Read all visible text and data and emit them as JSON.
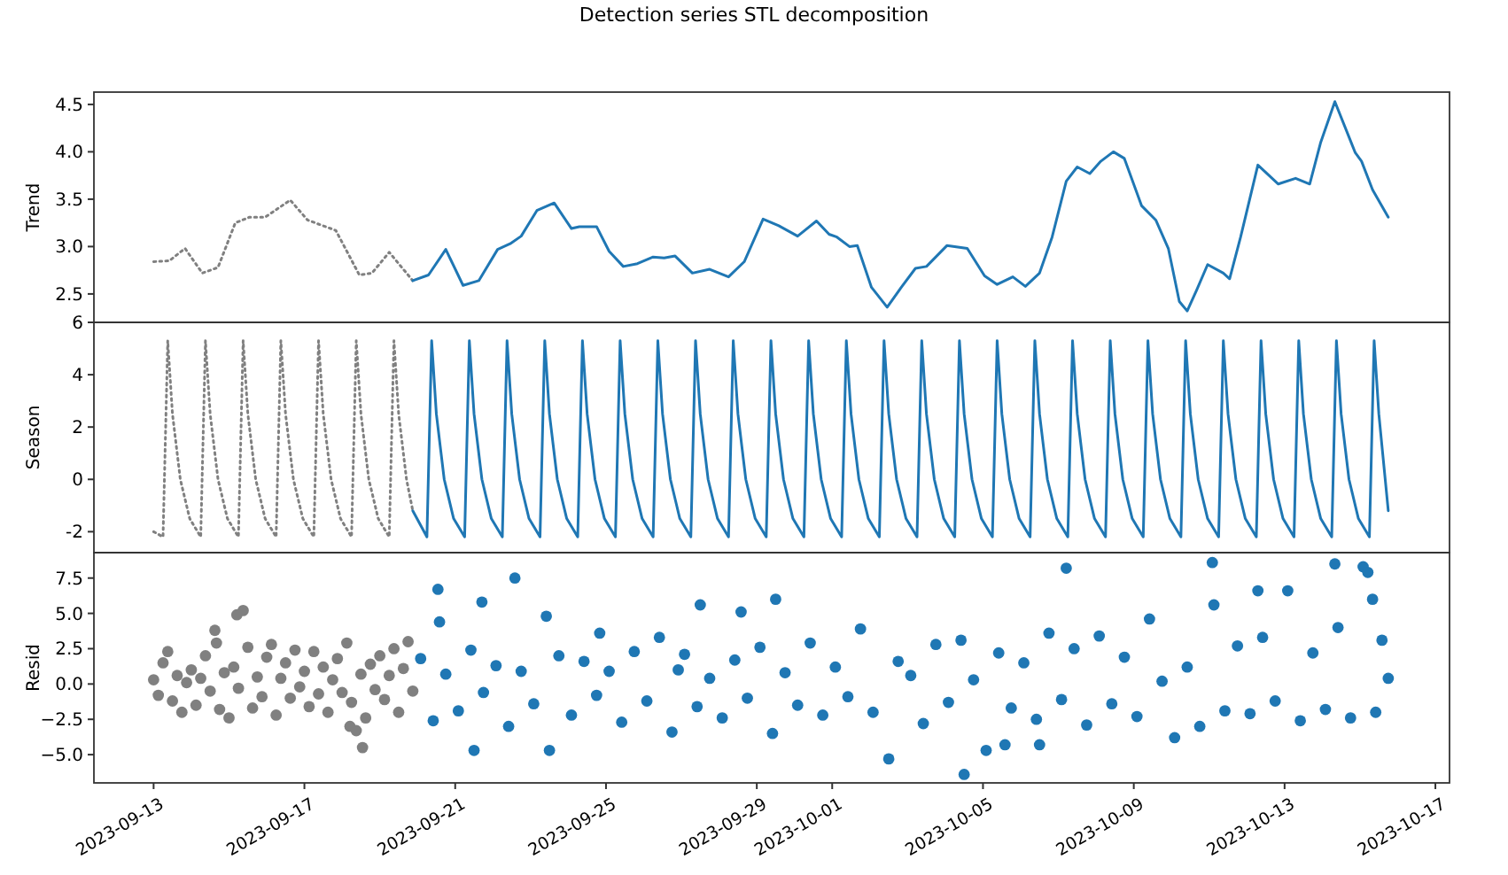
{
  "chart_data": [
    {
      "type": "line",
      "title": "Detection series STL decomposition",
      "ylabel": "Trend",
      "xlim": [
        "2023-09-11T10:00",
        "2023-10-17T09:00"
      ],
      "ylim": [
        2.2,
        4.63
      ],
      "yticks": [
        2.5,
        {
          "value": 3,
          "label": "3.0"
        },
        3.5,
        {
          "value": 4,
          "label": "4.0"
        },
        4.5
      ],
      "tick_labels": "y",
      "series": [
        {
          "color": "#808080",
          "line_style": "dotted",
          "x": [
            "2023-09-13T00:00",
            "2023-09-13T10:00",
            "2023-09-13T20:00",
            "2023-09-14T07:00",
            "2023-09-14T17:00",
            "2023-09-15T04:00",
            "2023-09-15T13:00",
            "2023-09-15T23:00",
            "2023-09-16T15:00",
            "2023-09-17T02:00",
            "2023-09-17T20:00",
            "2023-09-18T11:00",
            "2023-09-18T19:00",
            "2023-09-19T06:00",
            "2023-09-19T21:00"
          ],
          "values": [
            2.84,
            2.85,
            2.98,
            2.72,
            2.78,
            3.25,
            3.31,
            3.31,
            3.49,
            3.28,
            3.17,
            2.7,
            2.72,
            2.94,
            2.64
          ]
        },
        {
          "color": "#1f77b4",
          "line_style": "solid",
          "x": [
            "2023-09-19T21:00",
            "2023-09-20T07:00",
            "2023-09-20T18:00",
            "2023-09-21T05:00",
            "2023-09-21T15:00",
            "2023-09-22T03:00",
            "2023-09-22T11:00",
            "2023-09-22T18:00",
            "2023-09-23T04:00",
            "2023-09-23T15:00",
            "2023-09-24T02:00",
            "2023-09-24T07:00",
            "2023-09-24T18:00",
            "2023-09-25T02:00",
            "2023-09-25T11:00",
            "2023-09-25T20:00",
            "2023-09-26T06:00",
            "2023-09-26T13:00",
            "2023-09-26T20:00",
            "2023-09-27T07:00",
            "2023-09-27T18:00",
            "2023-09-28T06:00",
            "2023-09-28T16:00",
            "2023-09-29T04:00",
            "2023-09-29T14:00",
            "2023-09-30T02:00",
            "2023-09-30T14:00",
            "2023-09-30T22:00",
            "2023-10-01T03:00",
            "2023-10-01T11:00",
            "2023-10-01T16:00",
            "2023-10-02T01:00",
            "2023-10-02T11:00",
            "2023-10-02T20:00",
            "2023-10-03T05:00",
            "2023-10-03T12:00",
            "2023-10-04T01:00",
            "2023-10-04T14:00",
            "2023-10-05T01:00",
            "2023-10-05T09:00",
            "2023-10-05T19:00",
            "2023-10-06T03:00",
            "2023-10-06T12:00",
            "2023-10-06T20:00",
            "2023-10-07T05:00",
            "2023-10-07T12:00",
            "2023-10-07T20:00",
            "2023-10-08T03:00",
            "2023-10-08T11:00",
            "2023-10-08T18:00",
            "2023-10-09T05:00",
            "2023-10-09T14:00",
            "2023-10-09T22:00",
            "2023-10-10T05:00",
            "2023-10-10T10:00",
            "2023-10-10T16:00",
            "2023-10-10T23:00",
            "2023-10-11T09:00",
            "2023-10-11T13:00",
            "2023-10-11T20:00",
            "2023-10-12T07:00",
            "2023-10-12T20:00",
            "2023-10-13T07:00",
            "2023-10-13T16:00",
            "2023-10-13T23:00",
            "2023-10-14T08:00",
            "2023-10-14T21:00",
            "2023-10-15T01:00",
            "2023-10-15T08:00",
            "2023-10-15T18:00"
          ],
          "values": [
            2.64,
            2.7,
            2.97,
            2.59,
            2.64,
            2.97,
            3.03,
            3.11,
            3.38,
            3.46,
            3.19,
            3.21,
            3.21,
            2.95,
            2.79,
            2.82,
            2.89,
            2.88,
            2.9,
            2.72,
            2.76,
            2.68,
            2.84,
            3.29,
            3.22,
            3.11,
            3.27,
            3.13,
            3.1,
            3.0,
            3.01,
            2.57,
            2.36,
            2.57,
            2.77,
            2.79,
            3.01,
            2.98,
            2.69,
            2.6,
            2.68,
            2.58,
            2.72,
            3.1,
            3.69,
            3.84,
            3.77,
            3.9,
            4.0,
            3.93,
            3.43,
            3.28,
            2.98,
            2.42,
            2.32,
            2.54,
            2.81,
            2.72,
            2.66,
            3.1,
            3.86,
            3.66,
            3.72,
            3.66,
            4.1,
            4.53,
            3.99,
            3.9,
            3.6,
            3.31
          ]
        }
      ]
    },
    {
      "type": "line",
      "ylabel": "Season",
      "xlim": [
        "2023-09-11T10:00",
        "2023-10-17T09:00"
      ],
      "ylim": [
        -2.8,
        6
      ],
      "yticks": [
        -2,
        0,
        2,
        4,
        6
      ],
      "tick_labels": "y",
      "series": [
        {
          "color": "#808080",
          "line_style": "dotted",
          "x": [
            "2023-09-13T00:00",
            "2023-09-13T06:00",
            "2023-09-13T09:00",
            "2023-09-13T12:00",
            "2023-09-13T17:00",
            "2023-09-13T23:00",
            "2023-09-14T06:00",
            "2023-09-14T09:00",
            "2023-09-14T12:00",
            "2023-09-14T17:00",
            "2023-09-14T23:00",
            "2023-09-15T06:00",
            "2023-09-15T09:00",
            "2023-09-15T12:00",
            "2023-09-15T17:00",
            "2023-09-15T23:00",
            "2023-09-16T06:00",
            "2023-09-16T09:00",
            "2023-09-16T12:00",
            "2023-09-16T17:00",
            "2023-09-16T23:00",
            "2023-09-17T06:00",
            "2023-09-17T09:00",
            "2023-09-17T12:00",
            "2023-09-17T17:00",
            "2023-09-17T23:00",
            "2023-09-18T06:00",
            "2023-09-18T09:00",
            "2023-09-18T12:00",
            "2023-09-18T17:00",
            "2023-09-18T23:00",
            "2023-09-19T06:00",
            "2023-09-19T09:00",
            "2023-09-19T12:00",
            "2023-09-19T17:00",
            "2023-09-19T21:00"
          ],
          "values": [
            -2.0,
            -2.2,
            5.3,
            2.5,
            0.0,
            -1.5,
            -2.2,
            5.3,
            2.5,
            0.0,
            -1.5,
            -2.2,
            5.3,
            2.5,
            0.0,
            -1.5,
            -2.2,
            5.3,
            2.5,
            0.0,
            -1.5,
            -2.2,
            5.3,
            2.5,
            0.0,
            -1.5,
            -2.2,
            5.3,
            2.5,
            0.0,
            -1.5,
            -2.2,
            5.3,
            2.5,
            0.0,
            -1.2
          ]
        },
        {
          "color": "#1f77b4",
          "line_style": "solid",
          "x": [
            "2023-09-19T21:00",
            "2023-09-20T06:00",
            "2023-09-20T09:00",
            "2023-09-20T12:00",
            "2023-09-20T17:00",
            "2023-09-20T23:00",
            "2023-09-21T06:00",
            "2023-09-21T09:00",
            "2023-09-21T12:00",
            "2023-09-21T17:00",
            "2023-09-21T23:00",
            "2023-09-22T06:00",
            "2023-09-22T09:00",
            "2023-09-22T12:00",
            "2023-09-22T17:00",
            "2023-09-22T23:00",
            "2023-09-23T06:00",
            "2023-09-23T09:00",
            "2023-09-23T12:00",
            "2023-09-23T17:00",
            "2023-09-23T23:00",
            "2023-09-24T06:00",
            "2023-09-24T09:00",
            "2023-09-24T12:00",
            "2023-09-24T17:00",
            "2023-09-24T23:00",
            "2023-09-25T06:00",
            "2023-09-25T09:00",
            "2023-09-25T12:00",
            "2023-09-25T17:00",
            "2023-09-25T23:00",
            "2023-09-26T06:00",
            "2023-09-26T09:00",
            "2023-09-26T12:00",
            "2023-09-26T17:00",
            "2023-09-26T23:00",
            "2023-09-27T06:00",
            "2023-09-27T09:00",
            "2023-09-27T12:00",
            "2023-09-27T17:00",
            "2023-09-27T23:00",
            "2023-09-28T06:00",
            "2023-09-28T09:00",
            "2023-09-28T12:00",
            "2023-09-28T17:00",
            "2023-09-28T23:00",
            "2023-09-29T06:00",
            "2023-09-29T09:00",
            "2023-09-29T12:00",
            "2023-09-29T17:00",
            "2023-09-29T23:00",
            "2023-09-30T06:00",
            "2023-09-30T09:00",
            "2023-09-30T12:00",
            "2023-09-30T17:00",
            "2023-09-30T23:00",
            "2023-10-01T06:00",
            "2023-10-01T09:00",
            "2023-10-01T12:00",
            "2023-10-01T17:00",
            "2023-10-01T23:00",
            "2023-10-02T06:00",
            "2023-10-02T09:00",
            "2023-10-02T12:00",
            "2023-10-02T17:00",
            "2023-10-02T23:00",
            "2023-10-03T06:00",
            "2023-10-03T09:00",
            "2023-10-03T12:00",
            "2023-10-03T17:00",
            "2023-10-03T23:00",
            "2023-10-04T06:00",
            "2023-10-04T09:00",
            "2023-10-04T12:00",
            "2023-10-04T17:00",
            "2023-10-04T23:00",
            "2023-10-05T06:00",
            "2023-10-05T09:00",
            "2023-10-05T12:00",
            "2023-10-05T17:00",
            "2023-10-05T23:00",
            "2023-10-06T06:00",
            "2023-10-06T09:00",
            "2023-10-06T12:00",
            "2023-10-06T17:00",
            "2023-10-06T23:00",
            "2023-10-07T06:00",
            "2023-10-07T09:00",
            "2023-10-07T12:00",
            "2023-10-07T17:00",
            "2023-10-07T23:00",
            "2023-10-08T06:00",
            "2023-10-08T09:00",
            "2023-10-08T12:00",
            "2023-10-08T17:00",
            "2023-10-08T23:00",
            "2023-10-09T06:00",
            "2023-10-09T09:00",
            "2023-10-09T12:00",
            "2023-10-09T17:00",
            "2023-10-09T23:00",
            "2023-10-10T06:00",
            "2023-10-10T09:00",
            "2023-10-10T12:00",
            "2023-10-10T17:00",
            "2023-10-10T23:00",
            "2023-10-11T06:00",
            "2023-10-11T09:00",
            "2023-10-11T12:00",
            "2023-10-11T17:00",
            "2023-10-11T23:00",
            "2023-10-12T06:00",
            "2023-10-12T09:00",
            "2023-10-12T12:00",
            "2023-10-12T17:00",
            "2023-10-12T23:00",
            "2023-10-13T06:00",
            "2023-10-13T09:00",
            "2023-10-13T12:00",
            "2023-10-13T17:00",
            "2023-10-13T23:00",
            "2023-10-14T06:00",
            "2023-10-14T09:00",
            "2023-10-14T12:00",
            "2023-10-14T17:00",
            "2023-10-14T23:00",
            "2023-10-15T06:00",
            "2023-10-15T09:00",
            "2023-10-15T12:00",
            "2023-10-15T18:00"
          ],
          "values": [
            -1.2,
            -2.2,
            5.3,
            2.5,
            0.0,
            -1.5,
            -2.2,
            5.3,
            2.5,
            0.0,
            -1.5,
            -2.2,
            5.3,
            2.5,
            0.0,
            -1.5,
            -2.2,
            5.3,
            2.5,
            0.0,
            -1.5,
            -2.2,
            5.3,
            2.5,
            0.0,
            -1.5,
            -2.2,
            5.3,
            2.5,
            0.0,
            -1.5,
            -2.2,
            5.3,
            2.5,
            0.0,
            -1.5,
            -2.2,
            5.3,
            2.5,
            0.0,
            -1.5,
            -2.2,
            5.3,
            2.5,
            0.0,
            -1.5,
            -2.2,
            5.3,
            2.5,
            0.0,
            -1.5,
            -2.2,
            5.3,
            2.5,
            0.0,
            -1.5,
            -2.2,
            5.3,
            2.5,
            0.0,
            -1.5,
            -2.2,
            5.3,
            2.5,
            0.0,
            -1.5,
            -2.2,
            5.3,
            2.5,
            0.0,
            -1.5,
            -2.2,
            5.3,
            2.5,
            0.0,
            -1.5,
            -2.2,
            5.3,
            2.5,
            0.0,
            -1.5,
            -2.2,
            5.3,
            2.5,
            0.0,
            -1.5,
            -2.2,
            5.3,
            2.5,
            0.0,
            -1.5,
            -2.2,
            5.3,
            2.5,
            0.0,
            -1.5,
            -2.2,
            5.3,
            2.5,
            0.0,
            -1.5,
            -2.2,
            5.3,
            2.5,
            0.0,
            -1.5,
            -2.2,
            5.3,
            2.5,
            0.0,
            -1.5,
            -2.2,
            5.3,
            2.5,
            0.0,
            -1.5,
            -2.2,
            5.3,
            2.5,
            0.0,
            -1.5,
            -2.2,
            5.3,
            2.5,
            0.0,
            -1.5,
            -2.2,
            5.3,
            2.5,
            -1.2
          ]
        }
      ]
    },
    {
      "type": "scatter",
      "ylabel": "Resid",
      "xlim": [
        "2023-09-11T10:00",
        "2023-10-17T09:00"
      ],
      "ylim": [
        -7.0,
        9.3
      ],
      "yticks": [
        {
          "value": -5,
          "label": "−5.0"
        },
        {
          "value": -2.5,
          "label": "−2.5"
        },
        {
          "value": 0,
          "label": "0.0"
        },
        2.5,
        {
          "value": 5,
          "label": "5.0"
        },
        7.5
      ],
      "xticks": [
        "2023-09-13",
        "2023-09-17",
        "2023-09-21",
        "2023-09-25",
        "2023-09-29",
        "2023-10-01",
        "2023-10-05",
        "2023-10-09",
        "2023-10-13",
        "2023-10-17"
      ],
      "marker": "circle",
      "series": [
        {
          "color": "#808080",
          "x": [
            "2023-09-13T00:00",
            "2023-09-13T03:00",
            "2023-09-13T06:00",
            "2023-09-13T09:00",
            "2023-09-13T12:00",
            "2023-09-13T15:00",
            "2023-09-13T18:00",
            "2023-09-13T21:00",
            "2023-09-14T00:00",
            "2023-09-14T03:00",
            "2023-09-14T06:00",
            "2023-09-14T09:00",
            "2023-09-14T12:00",
            "2023-09-14T15:00",
            "2023-09-14T16:00",
            "2023-09-14T18:00",
            "2023-09-14T21:00",
            "2023-09-15T00:00",
            "2023-09-15T03:00",
            "2023-09-15T06:00",
            "2023-09-15T09:00",
            "2023-09-15T05:00",
            "2023-09-15T12:00",
            "2023-09-15T15:00",
            "2023-09-15T18:00",
            "2023-09-15T21:00",
            "2023-09-16T00:00",
            "2023-09-16T03:00",
            "2023-09-16T06:00",
            "2023-09-16T09:00",
            "2023-09-16T12:00",
            "2023-09-16T15:00",
            "2023-09-16T18:00",
            "2023-09-16T21:00",
            "2023-09-17T00:00",
            "2023-09-17T03:00",
            "2023-09-17T06:00",
            "2023-09-17T09:00",
            "2023-09-17T12:00",
            "2023-09-17T15:00",
            "2023-09-17T18:00",
            "2023-09-17T21:00",
            "2023-09-18T00:00",
            "2023-09-18T03:00",
            "2023-09-18T06:00",
            "2023-09-18T09:00",
            "2023-09-18T05:00",
            "2023-09-18T12:00",
            "2023-09-18T13:00",
            "2023-09-18T15:00",
            "2023-09-18T18:00",
            "2023-09-18T21:00",
            "2023-09-19T00:00",
            "2023-09-19T03:00",
            "2023-09-19T06:00",
            "2023-09-19T09:00",
            "2023-09-19T12:00",
            "2023-09-19T15:00",
            "2023-09-19T18:00",
            "2023-09-19T21:00"
          ],
          "values": [
            0.3,
            -0.8,
            1.5,
            2.3,
            -1.2,
            0.6,
            -2.0,
            0.1,
            1.0,
            -1.5,
            0.4,
            2.0,
            -0.5,
            3.8,
            2.9,
            -1.8,
            0.8,
            -2.4,
            1.2,
            -0.3,
            5.2,
            4.9,
            2.6,
            -1.7,
            0.5,
            -0.9,
            1.9,
            2.8,
            -2.2,
            0.4,
            1.5,
            -1.0,
            2.4,
            -0.2,
            0.9,
            -1.6,
            2.3,
            -0.7,
            1.2,
            -2.0,
            0.3,
            1.8,
            -0.6,
            2.9,
            -1.3,
            -3.3,
            -3.0,
            0.7,
            -4.5,
            -2.4,
            1.4,
            -0.4,
            2.0,
            -1.1,
            0.6,
            2.5,
            -2.0,
            1.1,
            3.0,
            -0.5
          ]
        },
        {
          "color": "#1f77b4",
          "x": [
            "2023-09-20T02:00",
            "2023-09-20T10:00",
            "2023-09-20T13:00",
            "2023-09-20T14:00",
            "2023-09-20T18:00",
            "2023-09-21T02:00",
            "2023-09-21T10:00",
            "2023-09-21T12:00",
            "2023-09-21T17:00",
            "2023-09-21T18:00",
            "2023-09-22T02:00",
            "2023-09-22T10:00",
            "2023-09-22T14:00",
            "2023-09-22T18:00",
            "2023-09-23T02:00",
            "2023-09-23T10:00",
            "2023-09-23T12:00",
            "2023-09-23T18:00",
            "2023-09-24T02:00",
            "2023-09-24T10:00",
            "2023-09-24T18:00",
            "2023-09-24T20:00",
            "2023-09-25T02:00",
            "2023-09-25T10:00",
            "2023-09-25T18:00",
            "2023-09-26T02:00",
            "2023-09-26T10:00",
            "2023-09-26T18:00",
            "2023-09-26T22:00",
            "2023-09-27T02:00",
            "2023-09-27T10:00",
            "2023-09-27T12:00",
            "2023-09-27T18:00",
            "2023-09-28T02:00",
            "2023-09-28T10:00",
            "2023-09-28T14:00",
            "2023-09-28T18:00",
            "2023-09-29T02:00",
            "2023-09-29T10:00",
            "2023-09-29T12:00",
            "2023-09-29T18:00",
            "2023-09-30T02:00",
            "2023-09-30T10:00",
            "2023-09-30T18:00",
            "2023-10-01T02:00",
            "2023-10-01T10:00",
            "2023-10-01T18:00",
            "2023-10-02T02:00",
            "2023-10-02T12:00",
            "2023-10-02T18:00",
            "2023-10-03T02:00",
            "2023-10-03T10:00",
            "2023-10-03T18:00",
            "2023-10-04T02:00",
            "2023-10-04T10:00",
            "2023-10-04T12:00",
            "2023-10-04T18:00",
            "2023-10-05T02:00",
            "2023-10-05T10:00",
            "2023-10-05T14:00",
            "2023-10-05T18:00",
            "2023-10-06T02:00",
            "2023-10-06T10:00",
            "2023-10-06T12:00",
            "2023-10-06T18:00",
            "2023-10-07T02:00",
            "2023-10-07T05:00",
            "2023-10-07T10:00",
            "2023-10-07T18:00",
            "2023-10-08T02:00",
            "2023-10-08T10:00",
            "2023-10-08T18:00",
            "2023-10-09T02:00",
            "2023-10-09T10:00",
            "2023-10-09T18:00",
            "2023-10-10T02:00",
            "2023-10-10T10:00",
            "2023-10-10T18:00",
            "2023-10-11T02:00",
            "2023-10-11T03:00",
            "2023-10-11T10:00",
            "2023-10-11T18:00",
            "2023-10-12T02:00",
            "2023-10-12T07:00",
            "2023-10-12T10:00",
            "2023-10-12T18:00",
            "2023-10-13T02:00",
            "2023-10-13T10:00",
            "2023-10-13T18:00",
            "2023-10-14T02:00",
            "2023-10-14T08:00",
            "2023-10-14T10:00",
            "2023-10-14T18:00",
            "2023-10-15T02:00",
            "2023-10-15T05:00",
            "2023-10-15T08:00",
            "2023-10-15T10:00",
            "2023-10-15T14:00",
            "2023-10-15T18:00"
          ],
          "values": [
            1.8,
            -2.6,
            6.7,
            4.4,
            0.7,
            -1.9,
            2.4,
            -4.7,
            5.8,
            -0.6,
            1.3,
            -3.0,
            7.5,
            0.9,
            -1.4,
            4.8,
            -4.7,
            2.0,
            -2.2,
            1.6,
            -0.8,
            3.6,
            0.9,
            -2.7,
            2.3,
            -1.2,
            3.3,
            -3.4,
            1.0,
            2.1,
            -1.6,
            5.6,
            0.4,
            -2.4,
            1.7,
            5.1,
            -1.0,
            2.6,
            -3.5,
            6.0,
            0.8,
            -1.5,
            2.9,
            -2.2,
            1.2,
            -0.9,
            3.9,
            -2.0,
            -5.3,
            1.6,
            0.6,
            -2.8,
            2.8,
            -1.3,
            3.1,
            -6.4,
            0.3,
            -4.7,
            2.2,
            -4.3,
            -1.7,
            1.5,
            -2.5,
            -4.3,
            3.6,
            -1.1,
            8.2,
            2.5,
            -2.9,
            3.4,
            -1.4,
            1.9,
            -2.3,
            4.6,
            0.2,
            -3.8,
            1.2,
            -3.0,
            8.6,
            5.6,
            -1.9,
            2.7,
            -2.1,
            6.6,
            3.3,
            -1.2,
            6.6,
            -2.6,
            2.2,
            -1.8,
            8.5,
            4.0,
            -2.4,
            8.3,
            7.9,
            6.0,
            -2.0,
            3.1,
            0.4
          ]
        }
      ]
    }
  ]
}
